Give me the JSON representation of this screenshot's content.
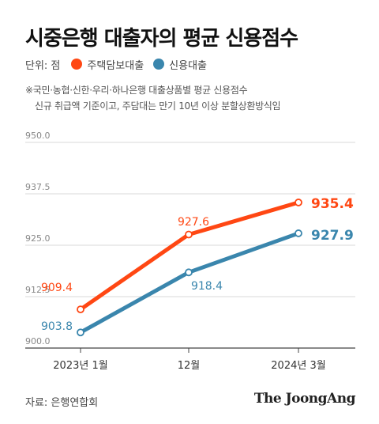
{
  "title": "시중은행 대출자의 평균 신용점수",
  "legend": {
    "unit": "단위: 점",
    "items": [
      {
        "label": "주택담보대출",
        "color": "#ff4713"
      },
      {
        "label": "신용대출",
        "color": "#3a86ad"
      }
    ]
  },
  "note": {
    "line1": "※국민·농협·신한·우리·하나은행 대출상품별 평균 신용점수",
    "line2": "신규 취급액 기준이고, 주담대는 만기 10년 이상 분할상환방식임"
  },
  "source": "자료: 은행연합회",
  "brand": "The JoongAng",
  "chart_data": {
    "type": "line",
    "categories": [
      "2023년 1월",
      "12월",
      "2024년 3월"
    ],
    "ylim": [
      900.0,
      950.0
    ],
    "yticks": [
      "900.0",
      "912.5",
      "925.0",
      "937.5",
      "950.0"
    ],
    "grid": true,
    "series": [
      {
        "name": "주택담보대출",
        "color": "#ff4713",
        "values": [
          909.4,
          927.6,
          935.4
        ],
        "labels": [
          "909.4",
          "927.6",
          "935.4"
        ]
      },
      {
        "name": "신용대출",
        "color": "#3a86ad",
        "values": [
          903.8,
          918.4,
          927.9
        ],
        "labels": [
          "903.8",
          "918.4",
          "927.9"
        ]
      }
    ]
  }
}
